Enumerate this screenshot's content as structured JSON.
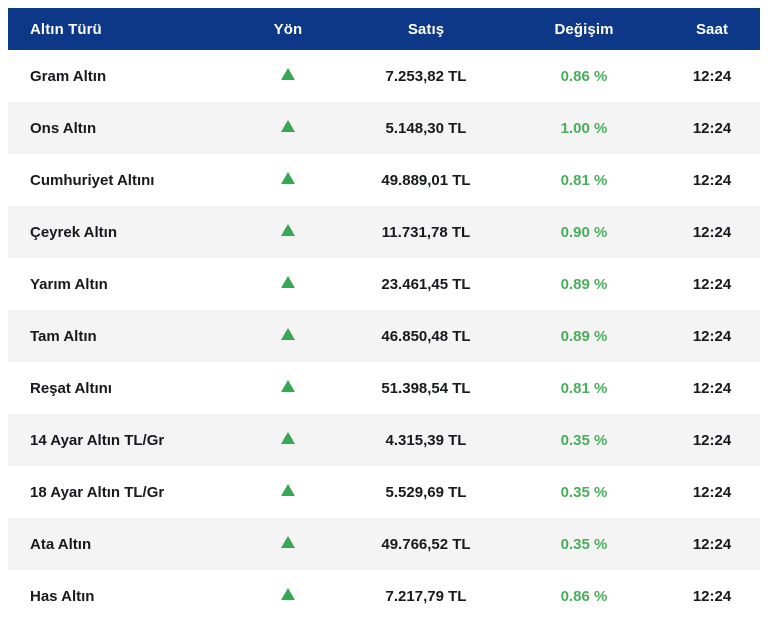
{
  "table": {
    "columns": [
      "Altın Türü",
      "Yön",
      "Satış",
      "Değişim",
      "Saat"
    ],
    "colors": {
      "header_bg": "#0d3787",
      "header_text": "#ffffff",
      "row_alt_bg": "#f4f4f4",
      "row_text": "#17191d",
      "up_green": "#35a853",
      "change_green": "#4aad5c"
    },
    "direction_icon": "up-triangle-icon",
    "rows": [
      {
        "name": "Gram Altın",
        "direction": "up",
        "price": "7.253,82 TL",
        "change": "0.86 %",
        "time": "12:24"
      },
      {
        "name": "Ons Altın",
        "direction": "up",
        "price": "5.148,30 TL",
        "change": "1.00 %",
        "time": "12:24"
      },
      {
        "name": "Cumhuriyet Altını",
        "direction": "up",
        "price": "49.889,01 TL",
        "change": "0.81 %",
        "time": "12:24"
      },
      {
        "name": "Çeyrek Altın",
        "direction": "up",
        "price": "11.731,78 TL",
        "change": "0.90 %",
        "time": "12:24"
      },
      {
        "name": "Yarım Altın",
        "direction": "up",
        "price": "23.461,45 TL",
        "change": "0.89 %",
        "time": "12:24"
      },
      {
        "name": "Tam Altın",
        "direction": "up",
        "price": "46.850,48 TL",
        "change": "0.89 %",
        "time": "12:24"
      },
      {
        "name": "Reşat Altını",
        "direction": "up",
        "price": "51.398,54 TL",
        "change": "0.81 %",
        "time": "12:24"
      },
      {
        "name": "14 Ayar Altın TL/Gr",
        "direction": "up",
        "price": "4.315,39 TL",
        "change": "0.35 %",
        "time": "12:24"
      },
      {
        "name": "18 Ayar Altın TL/Gr",
        "direction": "up",
        "price": "5.529,69 TL",
        "change": "0.35 %",
        "time": "12:24"
      },
      {
        "name": "Ata Altın",
        "direction": "up",
        "price": "49.766,52 TL",
        "change": "0.35 %",
        "time": "12:24"
      },
      {
        "name": "Has Altın",
        "direction": "up",
        "price": "7.217,79 TL",
        "change": "0.86 %",
        "time": "12:24"
      }
    ]
  }
}
